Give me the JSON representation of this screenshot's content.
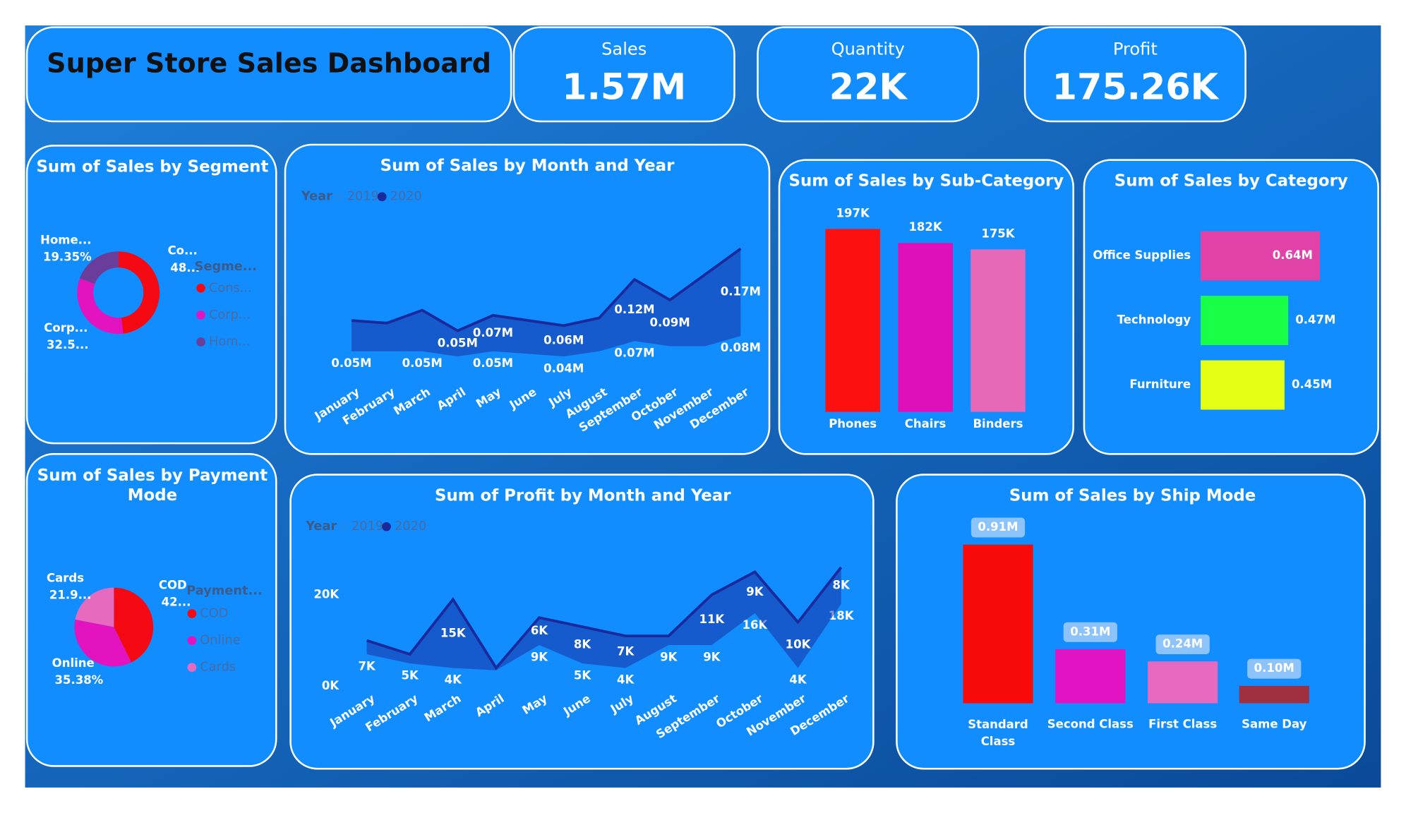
{
  "header": {
    "title": "Super Store Sales Dashboard"
  },
  "kpis": [
    {
      "label": "Sales",
      "value": "1.57M"
    },
    {
      "label": "Quantity",
      "value": "22K"
    },
    {
      "label": "Profit",
      "value": "175.26K"
    }
  ],
  "chart_data": [
    {
      "type": "donut",
      "title": "Sum of Sales by Segment",
      "legend_title": "Segme...",
      "categories": [
        "Cons...",
        "Corp...",
        "Hom..."
      ],
      "callout_labels": [
        "Co...",
        "Corp...",
        "Home..."
      ],
      "values": [
        48.13,
        32.52,
        19.35
      ],
      "value_labels": [
        "48...",
        "32.5...",
        "19.35%"
      ],
      "colors": [
        "#f50a14",
        "#e313c0",
        "#6a3d9a"
      ]
    },
    {
      "type": "area",
      "stacked": true,
      "title": "Sum of Sales by Month and Year",
      "legend_title": "Year",
      "categories": [
        "January",
        "February",
        "March",
        "April",
        "May",
        "June",
        "July",
        "August",
        "September",
        "October",
        "November",
        "December"
      ],
      "series": [
        {
          "name": "2019",
          "color": "#1a8af5",
          "values": [
            0.05,
            0.05,
            0.05,
            0.04,
            0.05,
            0.045,
            0.04,
            0.05,
            0.07,
            0.06,
            0.06,
            0.08
          ],
          "value_labels": [
            "0.05M",
            null,
            "0.05M",
            null,
            "0.05M",
            null,
            "0.04M",
            null,
            "0.07M",
            null,
            null,
            "0.08M"
          ]
        },
        {
          "name": "2020",
          "color": "#1a2a9c",
          "values": [
            0.06,
            0.055,
            0.08,
            0.05,
            0.07,
            0.065,
            0.06,
            0.065,
            0.12,
            0.09,
            0.14,
            0.17
          ],
          "value_labels": [
            null,
            null,
            null,
            "0.05M",
            "0.07M",
            null,
            "0.06M",
            null,
            "0.12M",
            "0.09M",
            null,
            "0.17M"
          ]
        }
      ]
    },
    {
      "type": "bar",
      "title": "Sum of Sales by Sub-Category",
      "categories": [
        "Phones",
        "Chairs",
        "Binders"
      ],
      "values": [
        197,
        182,
        175
      ],
      "value_labels": [
        "197K",
        "182K",
        "175K"
      ],
      "colors": [
        "#ff1010",
        "#e010b8",
        "#e868b8"
      ]
    },
    {
      "type": "bar",
      "orientation": "horizontal",
      "title": "Sum of Sales by Category",
      "categories": [
        "Office Supplies",
        "Technology",
        "Furniture"
      ],
      "values": [
        0.64,
        0.47,
        0.45
      ],
      "value_labels": [
        "0.64M",
        "0.47M",
        "0.45M"
      ],
      "colors": [
        "#e042a8",
        "#18ff48",
        "#e4ff14"
      ]
    },
    {
      "type": "pie",
      "title": "Sum of Sales by Payment Mode",
      "legend_title": "Payment...",
      "categories": [
        "COD",
        "Online",
        "Cards"
      ],
      "callout_labels": [
        "COD",
        "Online",
        "Cards"
      ],
      "values": [
        42.72,
        35.38,
        21.9
      ],
      "value_labels": [
        "42...",
        "35.38%",
        "21.9..."
      ],
      "colors": [
        "#f50a14",
        "#e313c0",
        "#e66bbf"
      ]
    },
    {
      "type": "area",
      "stacked": true,
      "title": "Sum of Profit by Month and Year",
      "legend_title": "Year",
      "categories": [
        "January",
        "February",
        "March",
        "April",
        "May",
        "June",
        "July",
        "August",
        "September",
        "October",
        "November",
        "December"
      ],
      "ylim": [
        0,
        30000
      ],
      "yticks": [
        {
          "value": 0,
          "label": "0K"
        },
        {
          "value": 20000,
          "label": "20K"
        }
      ],
      "series": [
        {
          "name": "2019",
          "color": "#1a8af5",
          "values": [
            7000,
            5000,
            4000,
            3500,
            9000,
            5000,
            4000,
            9000,
            9000,
            16000,
            4000,
            18000
          ],
          "value_labels": [
            "7K",
            "5K",
            "4K",
            null,
            "9K",
            "5K",
            "4K",
            "9K",
            "9K",
            "16K",
            "4K",
            "18K"
          ]
        },
        {
          "name": "2020",
          "color": "#1a2a9c",
          "values": [
            3000,
            2000,
            15000,
            500,
            6000,
            8000,
            7000,
            2000,
            11000,
            9000,
            10000,
            8000
          ],
          "value_labels": [
            null,
            null,
            "15K",
            null,
            "6K",
            "8K",
            "7K",
            null,
            "11K",
            "9K",
            "10K",
            "8K"
          ]
        }
      ]
    },
    {
      "type": "bar",
      "title": "Sum of Sales by Ship Mode",
      "categories": [
        "Standard Class",
        "Second Class",
        "First Class",
        "Same Day"
      ],
      "values": [
        0.91,
        0.31,
        0.24,
        0.1
      ],
      "value_labels": [
        "0.91M",
        "0.31M",
        "0.24M",
        "0.10M"
      ],
      "colors": [
        "#f80a0a",
        "#e012c4",
        "#e86ac0",
        "#a03040"
      ]
    }
  ]
}
